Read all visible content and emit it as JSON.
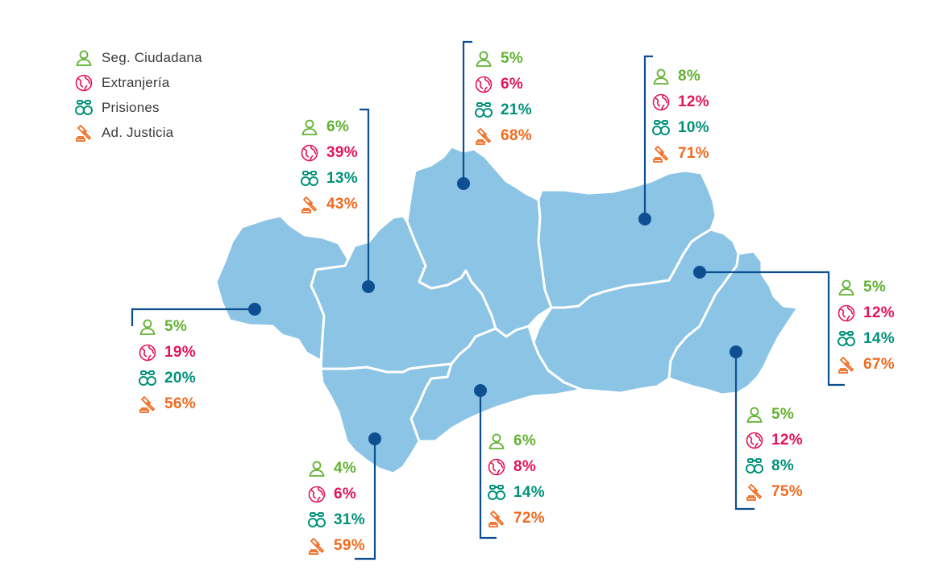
{
  "legend": {
    "seg": "Seg. Ciudadana",
    "ext": "Extranjería",
    "pri": "Prisiones",
    "jus": "Ad. Justicia"
  },
  "colors": {
    "seg": "#62b232",
    "ext": "#e2145a",
    "pri": "#00917a",
    "jus": "#f06a1f",
    "map_fill": "#8bc4e5",
    "border": "#ffffff",
    "leader": "#0d4f91"
  },
  "icons": {
    "seg": "person-outline-icon",
    "ext": "globe-icon",
    "pri": "handcuffs-icon",
    "jus": "gavel-icon"
  },
  "provinces": {
    "cordoba": {
      "seg": "5%",
      "ext": "6%",
      "pri": "21%",
      "jus": "68%"
    },
    "jaen": {
      "seg": "8%",
      "ext": "12%",
      "pri": "10%",
      "jus": "71%"
    },
    "sevilla": {
      "seg": "6%",
      "ext": "39%",
      "pri": "13%",
      "jus": "43%"
    },
    "huelva": {
      "seg": "5%",
      "ext": "19%",
      "pri": "20%",
      "jus": "56%"
    },
    "granada": {
      "seg": "5%",
      "ext": "12%",
      "pri": "14%",
      "jus": "67%"
    },
    "almeria": {
      "seg": "5%",
      "ext": "12%",
      "pri": "8%",
      "jus": "75%"
    },
    "malaga": {
      "seg": "6%",
      "ext": "8%",
      "pri": "14%",
      "jus": "72%"
    },
    "cadiz": {
      "seg": "4%",
      "ext": "6%",
      "pri": "31%",
      "jus": "59%"
    }
  }
}
